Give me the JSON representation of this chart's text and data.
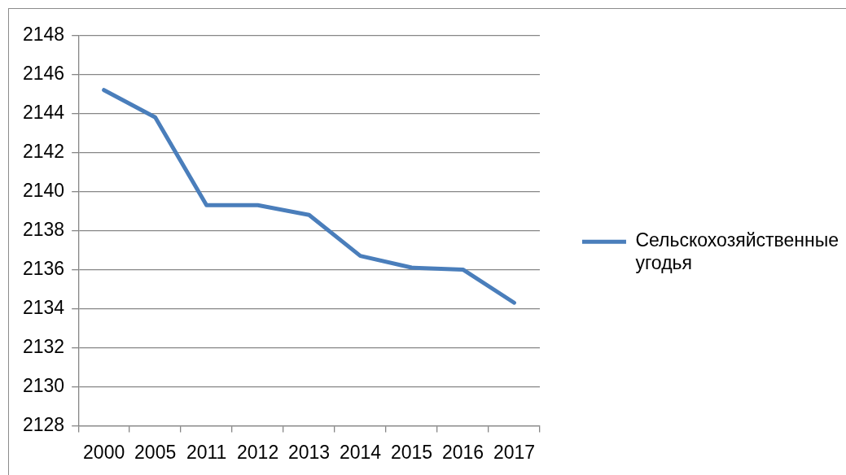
{
  "chart_data": {
    "type": "line",
    "categories": [
      "2000",
      "2005",
      "2011",
      "2012",
      "2013",
      "2014",
      "2015",
      "2016",
      "2017"
    ],
    "series": [
      {
        "name": "Сельскохозяйственные угодья",
        "color": "#4a7ebb",
        "values": [
          2145.2,
          2143.8,
          2139.3,
          2139.3,
          2138.8,
          2136.7,
          2136.1,
          2136.0,
          2134.3
        ]
      }
    ],
    "ylim": [
      2128,
      2148
    ],
    "yticks": [
      2128,
      2130,
      2132,
      2134,
      2136,
      2138,
      2140,
      2142,
      2144,
      2146,
      2148
    ],
    "grid": "y",
    "legend": "right",
    "line_style": "solid"
  }
}
